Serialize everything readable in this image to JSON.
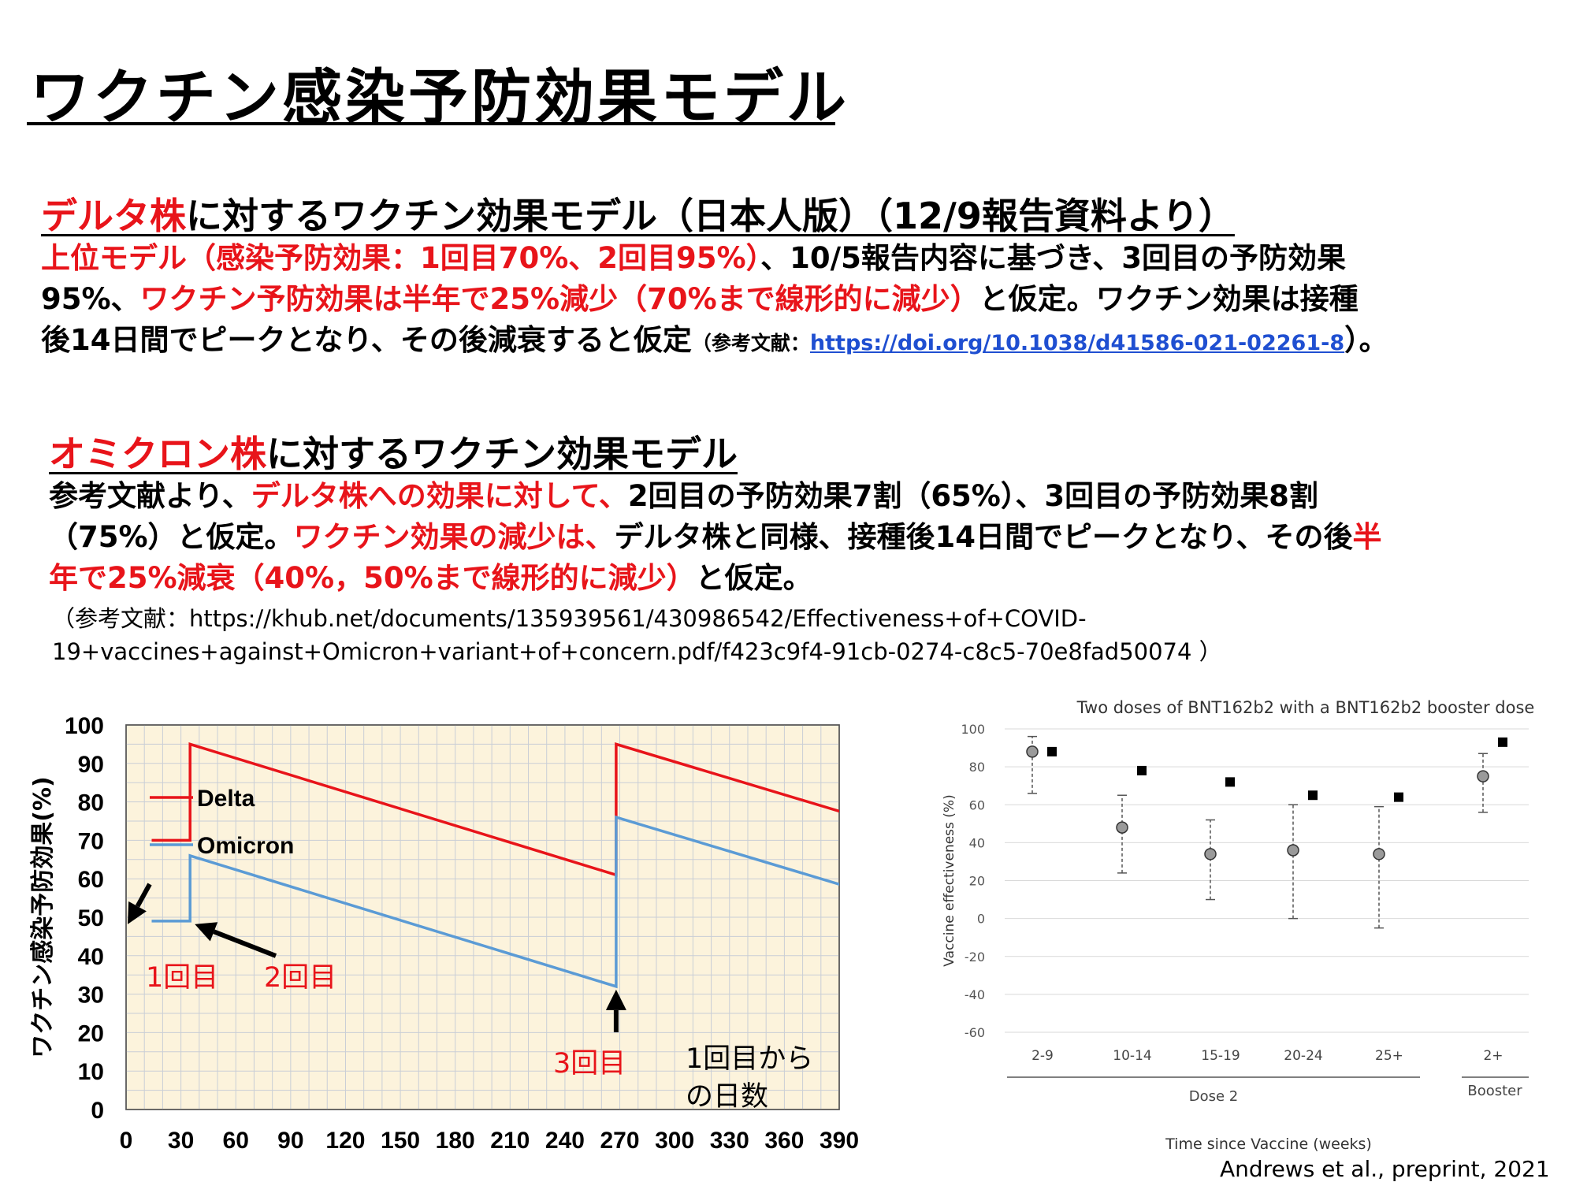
{
  "title": "ワクチン感染予防効果モデル",
  "delta": {
    "heading_red": "デルタ株",
    "heading_rest": "に対するワクチン効果モデル（日本人版）（12/9報告資料より）",
    "line1_red": "上位モデル（感染予防効果：1回目70%、2回目95%）",
    "line1_rest": "、10/5報告内容に基づき、3回目の予防効果",
    "line2_a": "95%、",
    "line2_red": "ワクチン予防効果は半年で25%減少（70%まで線形的に減少）",
    "line2_b": "と仮定。ワクチン効果は接種",
    "line3_a": "後14日間でピークとなり、その後減衰すると仮定",
    "line3_ref_open": "（参考文献：",
    "line3_link": "https://doi.org/10.1038/d41586-021-02261-8",
    "line3_ref_close": "）。"
  },
  "omicron": {
    "heading_red": "オミクロン株",
    "heading_rest": "に対するワクチン効果モデル",
    "line1_a": "参考文献より、",
    "line1_red": "デルタ株への効果に対して、",
    "line1_b": "2回目の予防効果7割（65%）、3回目の予防効果8割",
    "line2_a": "（75%）と仮定。",
    "line2_red": "ワクチン効果の減少は、",
    "line2_b": "デルタ株と同様、接種後14日間でピークとなり、その後",
    "line2_red2": "半",
    "line3_red": "年で25%減衰（40%，50%まで線形的に減少）",
    "line3_b": "と仮定。",
    "ref_line1": "（参考文献：https://khub.net/documents/135939561/430986542/Effectiveness+of+COVID-",
    "ref_line2": "19+vaccines+against+Omicron+variant+of+concern.pdf/f423c9f4-91cb-0274-c8c5-70e8fad50074 ）"
  },
  "chart_data": [
    {
      "type": "line",
      "title": "",
      "xlabel": "",
      "ylabel": "ワクチン感染予防効果(%)",
      "xlim": [
        0,
        390
      ],
      "ylim": [
        0,
        100
      ],
      "x_ticks": [
        0,
        30,
        60,
        90,
        120,
        150,
        180,
        210,
        240,
        270,
        300,
        330,
        360,
        390
      ],
      "y_ticks": [
        0,
        10,
        20,
        30,
        40,
        50,
        60,
        70,
        80,
        90,
        100
      ],
      "grid": true,
      "background": "#fcf3dc",
      "series": [
        {
          "name": "Delta",
          "color": "#e8141a",
          "x": [
            14,
            35,
            35,
            268,
            268,
            394
          ],
          "y": [
            70,
            70,
            95,
            61,
            95,
            77
          ]
        },
        {
          "name": "Omicron",
          "color": "#5b9bd5",
          "x": [
            14,
            35,
            35,
            268,
            268,
            394
          ],
          "y": [
            49,
            49,
            66,
            32,
            76,
            58
          ]
        }
      ],
      "legend_position": "lower-left",
      "annotations": [
        {
          "text": "1回目",
          "color": "#e8141a",
          "arrow_x": 0,
          "arrow_y": 49
        },
        {
          "text": "2回目",
          "color": "#e8141a",
          "arrow_x": 35,
          "arrow_y": 49
        },
        {
          "text": "3回目",
          "color": "#e8141a",
          "arrow_x": 268,
          "arrow_y": 32
        },
        {
          "text_line1": "1回目から",
          "text_line2": "の日数",
          "color": "#000000"
        }
      ]
    },
    {
      "type": "scatter",
      "title": "Two doses of BNT162b2 with a BNT162b2 booster dose",
      "xlabel": "Time since Vaccine (weeks)",
      "ylabel": "Vaccine effectiveness (%)",
      "ylim": [
        -60,
        100
      ],
      "y_ticks": [
        100,
        80,
        60,
        40,
        20,
        0,
        -20,
        -40,
        -60
      ],
      "categories": [
        "2-9",
        "10-14",
        "15-19",
        "20-24",
        "25+",
        "2+"
      ],
      "groups": [
        {
          "label": "Dose 2",
          "categories": [
            "2-9",
            "10-14",
            "15-19",
            "20-24",
            "25+"
          ]
        },
        {
          "label": "Booster",
          "categories": [
            "2+"
          ]
        }
      ],
      "grid": true,
      "series": [
        {
          "marker": "circle",
          "color": "#9a9a9a",
          "values": [
            88,
            48,
            34,
            36,
            34,
            75
          ],
          "ci_low": [
            66,
            24,
            10,
            0,
            -5,
            56
          ],
          "ci_high": [
            96,
            65,
            52,
            60,
            59,
            87
          ]
        },
        {
          "marker": "square",
          "color": "#000000",
          "values": [
            88,
            78,
            72,
            65,
            64,
            93
          ]
        }
      ]
    }
  ],
  "credit": "Andrews et al., preprint, 2021"
}
